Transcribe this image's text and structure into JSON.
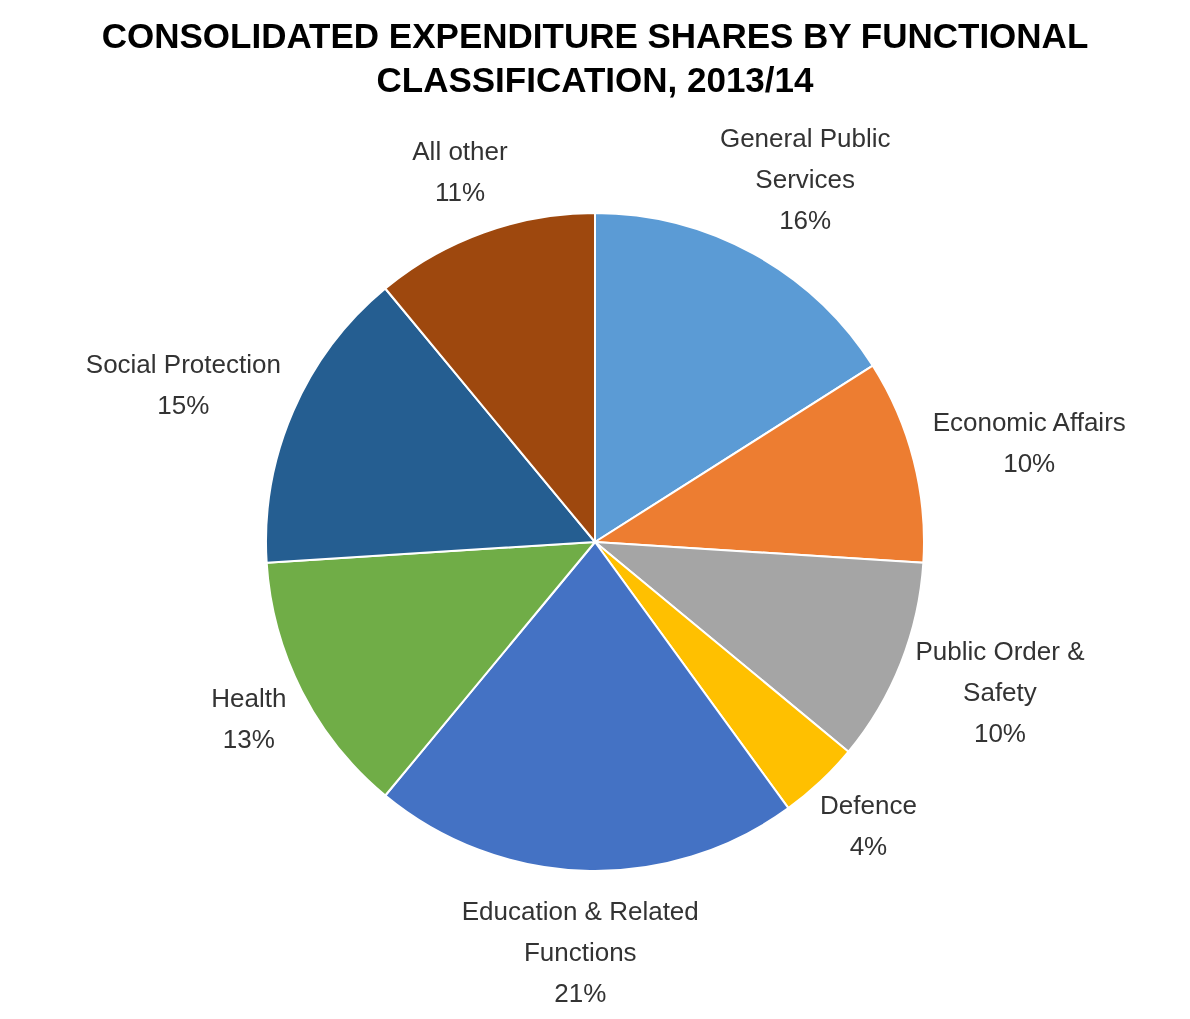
{
  "chart_data": {
    "type": "pie",
    "title": "CONSOLIDATED EXPENDITURE SHARES BY FUNCTIONAL CLASSIFICATION, 2013/14",
    "categories": [
      "General Public Services",
      "Economic Affairs",
      "Public Order & Safety",
      "Defence",
      "Education & Related Functions",
      "Health",
      "Social Protection",
      "All other"
    ],
    "values": [
      16,
      10,
      10,
      4,
      21,
      13,
      15,
      11
    ],
    "value_labels": [
      "16%",
      "10%",
      "10%",
      "4%",
      "21%",
      "13%",
      "15%",
      "11%"
    ],
    "colors": [
      "#5b9bd5",
      "#ed7d31",
      "#a5a5a5",
      "#ffc000",
      "#4472c4",
      "#70ad47",
      "#255e91",
      "#9e480e"
    ]
  }
}
